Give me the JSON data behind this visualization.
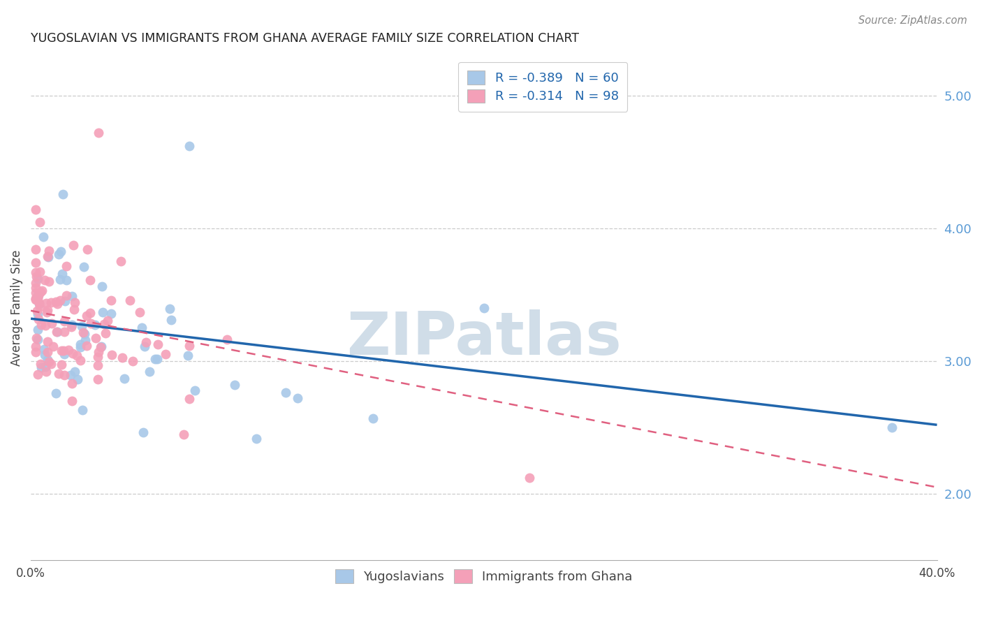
{
  "title": "YUGOSLAVIAN VS IMMIGRANTS FROM GHANA AVERAGE FAMILY SIZE CORRELATION CHART",
  "source": "Source: ZipAtlas.com",
  "ylabel": "Average Family Size",
  "right_yticks": [
    2.0,
    3.0,
    4.0,
    5.0
  ],
  "legend1_label": "R = -0.389   N = 60",
  "legend2_label": "R = -0.314   N = 98",
  "legend_bottom1": "Yugoslavians",
  "legend_bottom2": "Immigrants from Ghana",
  "blue_color": "#a8c8e8",
  "pink_color": "#f4a0b8",
  "blue_line_color": "#2166ac",
  "pink_line_color": "#e06080",
  "watermark_color": "#d0dde8",
  "legend_text_color": "#2166ac",
  "blue_line_start_y": 3.32,
  "blue_line_end_y": 2.52,
  "pink_line_start_y": 3.38,
  "pink_line_end_y": 2.05,
  "xlim": [
    0,
    40
  ],
  "ylim": [
    1.5,
    5.3
  ],
  "blue_N": 60,
  "pink_N": 98
}
